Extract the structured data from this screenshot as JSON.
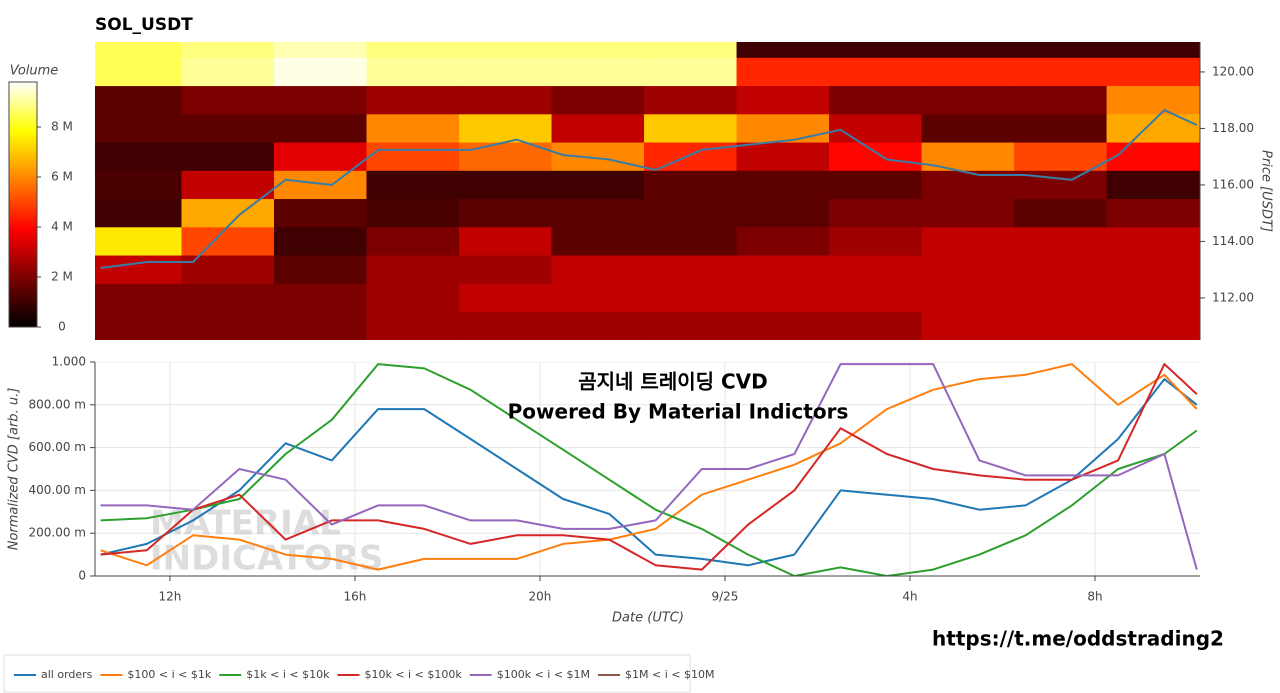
{
  "chart_data": [
    {
      "type": "heatmap",
      "title": "SOL_USDT",
      "colorbar_title": "Volume",
      "ylabel": "Price [USDT]",
      "xlim": [
        10.38,
        34.27
      ],
      "ylim": [
        110.51,
        121.06
      ],
      "yticks": [
        {
          "value": 112,
          "label": "112.00"
        },
        {
          "value": 114,
          "label": "114.00"
        },
        {
          "value": 116,
          "label": "116.00"
        },
        {
          "value": 118,
          "label": "118.00"
        },
        {
          "value": 120,
          "label": "120.00"
        }
      ],
      "zlim": [
        0,
        9.8
      ],
      "zticks": [
        0,
        {
          "value": 2,
          "label": "2 M"
        },
        {
          "value": 4,
          "label": "4 M"
        },
        {
          "value": 6,
          "label": "6 M"
        },
        {
          "value": 8,
          "label": "8 M"
        }
      ],
      "colorscale": [
        "#000000",
        "#7a0000",
        "#ff0000",
        "#ff8000",
        "#ffff00",
        "#ffffff"
      ],
      "x_edges": [
        10.25,
        12.25,
        14.25,
        16.25,
        18.25,
        20.25,
        22.25,
        24.25,
        26.25,
        28.25,
        30.25,
        32.25,
        34.25
      ],
      "y_edges": [
        121.5,
        120.5,
        119.5,
        118.5,
        117.5,
        116.5,
        115.5,
        114.5,
        113.5,
        112.5,
        111.5,
        110.5
      ],
      "z": [
        [
          8.5,
          8.8,
          9.2,
          8.8,
          8.8,
          8.8,
          8.8,
          1,
          1,
          1,
          1,
          1
        ],
        [
          8.5,
          9.0,
          9.6,
          9.0,
          9.0,
          9.0,
          9.0,
          4.5,
          4.5,
          4.5,
          4.5,
          4.5
        ],
        [
          1.5,
          2,
          2,
          2.5,
          2.5,
          2,
          2.5,
          3,
          2,
          2,
          2,
          6
        ],
        [
          1.5,
          1.5,
          1.5,
          6,
          7,
          3,
          7,
          6,
          3,
          1.5,
          1.5,
          6.5
        ],
        [
          1,
          1,
          3.5,
          5,
          5.5,
          6,
          4.5,
          3,
          4,
          6,
          5,
          4
        ],
        [
          1.2,
          3,
          6,
          1,
          1,
          1,
          1.5,
          1.5,
          1.5,
          2,
          2,
          1
        ],
        [
          1,
          6.5,
          1.5,
          1.2,
          1.5,
          1.5,
          1.5,
          1.5,
          2,
          2,
          1.5,
          2
        ],
        [
          7.5,
          5,
          1,
          2,
          3,
          1.5,
          1.5,
          2,
          2.5,
          3,
          3,
          3
        ],
        [
          3,
          2.5,
          1.5,
          2.5,
          2.5,
          3,
          3,
          3,
          3,
          3,
          3,
          3
        ],
        [
          2,
          2,
          2,
          2.5,
          3,
          3,
          3,
          3,
          3,
          3,
          3,
          3
        ],
        [
          2,
          2,
          2,
          2.5,
          2.5,
          2.5,
          2.5,
          2.5,
          2.5,
          3,
          3,
          3
        ]
      ],
      "line_color": "#3a7ca5",
      "x": [
        10.5,
        11.5,
        12.5,
        13.5,
        14.5,
        15.5,
        16.5,
        17.5,
        18.5,
        19.5,
        20.5,
        21.5,
        22.5,
        23.5,
        24.5,
        25.5,
        26.5,
        27.5,
        28.5,
        29.5,
        30.5,
        31.5,
        32.5,
        33.5,
        34.2
      ],
      "values": [
        113.06,
        113.27,
        113.27,
        114.94,
        116.18,
        116.0,
        117.24,
        117.24,
        117.24,
        117.6,
        117.06,
        116.9,
        116.53,
        117.24,
        117.42,
        117.6,
        117.95,
        116.9,
        116.7,
        116.35,
        116.35,
        116.18,
        117.06,
        118.65,
        118.12
      ]
    },
    {
      "type": "line",
      "xlabel": "Date (UTC)",
      "ylabel": "Normalized CVD [arb. u.]",
      "grid": true,
      "xlim": [
        10.38,
        34.27
      ],
      "ylim": [
        0,
        1
      ],
      "xticks": [
        {
          "value": 12,
          "label": "12h"
        },
        {
          "value": 16,
          "label": "16h"
        },
        {
          "value": 20,
          "label": "20h"
        },
        {
          "value": 24,
          "label": "9/25"
        },
        {
          "value": 28,
          "label": "4h"
        },
        {
          "value": 32,
          "label": "8h"
        }
      ],
      "yticks": [
        0,
        {
          "value": 0.2,
          "label": "200.00 m"
        },
        {
          "value": 0.4,
          "label": "400.00 m"
        },
        {
          "value": 0.6,
          "label": "600.00 m"
        },
        {
          "value": 0.8,
          "label": "800.00 m"
        },
        {
          "value": 1,
          "label": "1.000"
        }
      ],
      "annotations": [
        "곰지네 트레이딩 CVD",
        "Powered By Material Indictors",
        "https://t.me/oddstrading2"
      ],
      "watermark": [
        "MATERIAL",
        "INDICATORS"
      ],
      "x": [
        10.5,
        11.5,
        12.5,
        13.5,
        14.5,
        15.5,
        16.5,
        17.5,
        18.5,
        19.5,
        20.5,
        21.5,
        22.5,
        23.5,
        24.5,
        25.5,
        26.5,
        27.5,
        28.5,
        29.5,
        30.5,
        31.5,
        32.5,
        33.5,
        34.2
      ],
      "series": [
        {
          "name": "all orders",
          "color": "#1f77b4",
          "values": [
            0.1,
            0.15,
            0.26,
            0.4,
            0.62,
            0.54,
            0.78,
            0.78,
            0.64,
            0.5,
            0.36,
            0.29,
            0.1,
            0.08,
            0.05,
            0.1,
            0.4,
            0.38,
            0.36,
            0.31,
            0.33,
            0.45,
            0.64,
            0.92,
            0.8
          ]
        },
        {
          "name": "$100 < i < $1k",
          "color": "#ff7f0e",
          "values": [
            0.12,
            0.05,
            0.19,
            0.17,
            0.1,
            0.08,
            0.03,
            0.08,
            0.08,
            0.08,
            0.15,
            0.17,
            0.22,
            0.38,
            0.45,
            0.52,
            0.62,
            0.78,
            0.87,
            0.92,
            0.94,
            0.99,
            0.8,
            0.94,
            0.78
          ]
        },
        {
          "name": "$1k < i < $10k",
          "color": "#2ca02c",
          "values": [
            0.26,
            0.27,
            0.31,
            0.36,
            0.57,
            0.73,
            0.99,
            0.97,
            0.87,
            0.73,
            0.59,
            0.45,
            0.31,
            0.22,
            0.1,
            0.0,
            0.04,
            0.0,
            0.03,
            0.1,
            0.19,
            0.33,
            0.5,
            0.57,
            0.68
          ]
        },
        {
          "name": "$10k < i < $100k",
          "color": "#d62728",
          "values": [
            0.1,
            0.12,
            0.31,
            0.38,
            0.17,
            0.26,
            0.26,
            0.22,
            0.15,
            0.19,
            0.19,
            0.17,
            0.05,
            0.03,
            0.24,
            0.4,
            0.69,
            0.57,
            0.5,
            0.47,
            0.45,
            0.45,
            0.54,
            0.99,
            0.85
          ]
        },
        {
          "name": "$100k < i < $1M",
          "color": "#9467bd",
          "values": [
            0.33,
            0.33,
            0.31,
            0.5,
            0.45,
            0.24,
            0.33,
            0.33,
            0.26,
            0.26,
            0.22,
            0.22,
            0.26,
            0.5,
            0.5,
            0.57,
            0.99,
            0.99,
            0.99,
            0.54,
            0.47,
            0.47,
            0.47,
            0.57,
            0.03
          ]
        },
        {
          "name": "$1M < i < $10M",
          "color": "#8c564b",
          "values": [
            null,
            null,
            null,
            null,
            null,
            null,
            null,
            null,
            null,
            null,
            null,
            null,
            null,
            null,
            null,
            null,
            null,
            null,
            null,
            null,
            null,
            null,
            null,
            null,
            null
          ]
        }
      ]
    }
  ]
}
